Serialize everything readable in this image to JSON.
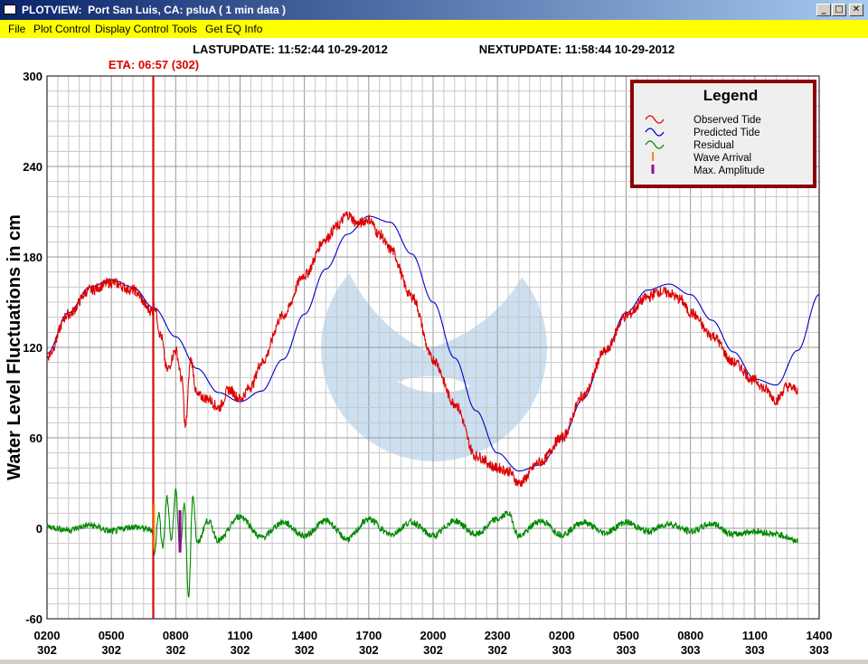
{
  "window": {
    "title": "PLOTVIEW:  Port San Luis, CA: psluA ( 1 min data )",
    "minimize_glyph": "_",
    "maximize_glyph": "□",
    "close_glyph": "✕"
  },
  "menu": [
    "File",
    "Plot Control",
    "Display Control",
    "Tools",
    "Get EQ Info"
  ],
  "header": {
    "lastupdate": "LASTUPDATE: 11:52:44 10-29-2012",
    "nextupdate": "NEXTUPDATE: 11:58:44 10-29-2012",
    "eta": "ETA: 06:57 (302)"
  },
  "colors": {
    "observed": "#dd0000",
    "predicted": "#0000cc",
    "residual": "#008800",
    "wave_arrival": "#ff8800",
    "max_amplitude": "#990099",
    "eta_line": "#dd0000",
    "legend_border": "#8b0000"
  },
  "chart_data": {
    "type": "line",
    "ylabel": "Water Level Fluctuations in cm",
    "ylim": [
      -60,
      300
    ],
    "yticks": [
      300,
      240,
      180,
      120,
      60,
      0,
      -60
    ],
    "xlim": [
      2,
      38
    ],
    "xtick_hours": [
      "0200",
      "0500",
      "0800",
      "1100",
      "1400",
      "1700",
      "2000",
      "2300",
      "0200",
      "0500",
      "0800",
      "1100",
      "1400"
    ],
    "xtick_days": [
      "302",
      "302",
      "302",
      "302",
      "302",
      "302",
      "302",
      "302",
      "303",
      "303",
      "303",
      "303",
      "303"
    ],
    "grid": true,
    "legend": {
      "title": "Legend",
      "placement": "top-right",
      "items": [
        "Observed Tide",
        "Predicted Tide",
        "Residual",
        "Wave Arrival",
        "Max. Amplitude"
      ]
    },
    "eta_hour": 6.95,
    "series": [
      {
        "name": "Predicted Tide",
        "x": [
          2,
          3,
          4,
          5,
          6,
          7,
          8,
          9,
          10,
          11,
          12,
          13,
          14,
          15,
          16,
          17,
          18,
          19,
          20,
          21,
          22,
          23,
          24,
          25,
          26,
          27,
          28,
          29,
          30,
          31,
          32,
          33,
          34,
          35,
          36,
          37,
          38
        ],
        "y": [
          116,
          143,
          160,
          165,
          160,
          146,
          127,
          106,
          90,
          84,
          91,
          112,
          142,
          172,
          195,
          207,
          203,
          182,
          150,
          113,
          78,
          50,
          38,
          42,
          59,
          86,
          117,
          143,
          158,
          162,
          155,
          138,
          117,
          99,
          95,
          118,
          155
        ]
      },
      {
        "name": "Observed Tide",
        "x": [
          2,
          3,
          4,
          5,
          6,
          6.9,
          7,
          7.3,
          7.6,
          8,
          8.3,
          8.45,
          8.7,
          9,
          9.5,
          10,
          10.5,
          11,
          11.5,
          12,
          13,
          14,
          15,
          15.5,
          16,
          16.5,
          17,
          17.5,
          18,
          19,
          20,
          21,
          22,
          23,
          23.5,
          24,
          25,
          26,
          27,
          28,
          29,
          30,
          30.5,
          31,
          31.5,
          32,
          33,
          34,
          35,
          35.5,
          36,
          36.5,
          37
        ],
        "y": [
          114,
          142,
          158,
          163,
          158,
          144,
          148,
          128,
          105,
          118,
          98,
          67,
          112,
          88,
          86,
          80,
          92,
          86,
          94,
          110,
          141,
          168,
          192,
          200,
          208,
          202,
          205,
          195,
          185,
          154,
          112,
          83,
          48,
          40,
          38,
          30,
          44,
          60,
          88,
          117,
          141,
          153,
          157,
          156,
          152,
          143,
          128,
          110,
          98,
          92,
          85,
          94,
          92
        ]
      },
      {
        "name": "Residual",
        "x": [
          2,
          3,
          4,
          5,
          6,
          6.9,
          7,
          7.2,
          7.4,
          7.6,
          7.8,
          8,
          8.2,
          8.4,
          8.6,
          8.8,
          9,
          9.5,
          10,
          11,
          12,
          13,
          14,
          15,
          16,
          17,
          18,
          19,
          20,
          21,
          22,
          23,
          23.5,
          24,
          25,
          26,
          27,
          28,
          29,
          30,
          31,
          32,
          33,
          34,
          35,
          36,
          37
        ],
        "y": [
          1,
          -1,
          2,
          -2,
          1,
          -1,
          -18,
          10,
          -12,
          20,
          -8,
          26,
          -15,
          15,
          -45,
          22,
          -10,
          5,
          -8,
          8,
          -6,
          4,
          -5,
          5,
          -7,
          6,
          -4,
          4,
          -5,
          5,
          -4,
          6,
          10,
          -5,
          5,
          -4,
          4,
          -3,
          4,
          -2,
          3,
          -2,
          3,
          -4,
          -2,
          -4,
          -8
        ]
      }
    ],
    "wave_arrival": {
      "x": 6.95,
      "y_low": -14,
      "y_high": 16
    },
    "max_amplitude": {
      "x": 8.2,
      "y_low": -16,
      "y_high": 12
    }
  }
}
